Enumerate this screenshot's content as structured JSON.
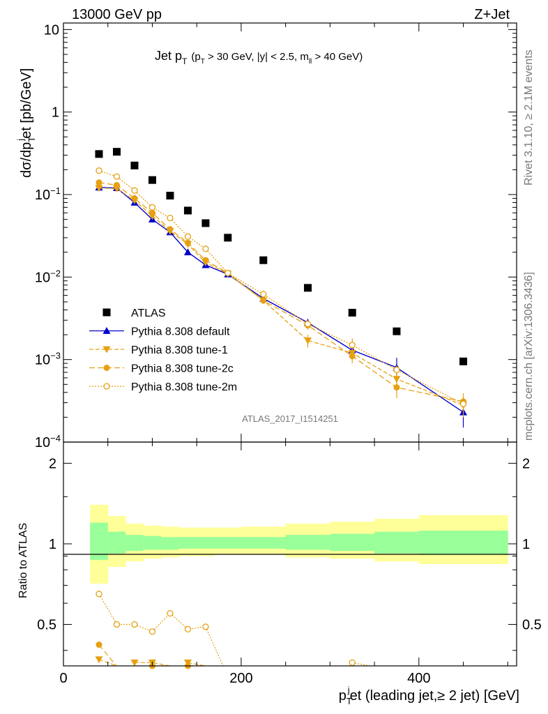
{
  "header": {
    "energy_label": "13000 GeV pp",
    "process_label": "Z+Jet"
  },
  "side_labels": {
    "rivet": "Rivet 3.1.10, ≥ 2.1M events",
    "mcplots": "mcplots.cern.ch [arXiv:1306.3436]"
  },
  "analysis_id": "ATLAS_2017_I1514251",
  "plot_title": {
    "main": "Jet p",
    "main_sub": "T",
    "cut_a": "(p",
    "cut_a_sub": "T",
    "cut_b": " > 30 GeV, |y| < 2.5, m",
    "cut_b_sub": "ll",
    "cut_c": " > 40 GeV)"
  },
  "y_label": {
    "a": "dσ/dp",
    "a_sub": "T",
    "a_sup": "j",
    "b": "et [pb/GeV]"
  },
  "x_label": {
    "a": "p",
    "a_sub": "T",
    "a_sup": "j",
    "b": "et (leading jet,≥ 2 jet) [GeV]"
  },
  "ratio_label": "Ratio to ATLAS",
  "legend": [
    "ATLAS",
    "Pythia 8.308 default",
    "Pythia 8.308 tune-1",
    "Pythia 8.308 tune-2c",
    "Pythia 8.308 tune-2m"
  ],
  "top_ticks": [
    {
      "label": "10",
      "sup": ""
    },
    {
      "label": "1",
      "sup": ""
    },
    {
      "label": "10",
      "sup": "−1"
    },
    {
      "label": "10",
      "sup": "−2"
    },
    {
      "label": "10",
      "sup": "−3"
    },
    {
      "label": "10",
      "sup": "−4"
    }
  ],
  "ratio_ticks": [
    "2",
    "1",
    "0.5"
  ],
  "x_ticks": [
    "0",
    "200",
    "400"
  ],
  "colors": {
    "atlas": "#000000",
    "default": "#0000cc",
    "tunes": "#e6a010",
    "band_inner": "#99ff99",
    "band_outer": "#ffff99"
  },
  "chart_data": {
    "type": "scatter",
    "x_axis": {
      "range": [
        0,
        510
      ],
      "scale": "linear"
    },
    "y_axis": {
      "range": [
        0.0001,
        12
      ],
      "scale": "log"
    },
    "ratio_axis": {
      "range": [
        0.35,
        2.4
      ],
      "scale": "log"
    },
    "bins": [
      [
        30,
        50
      ],
      [
        50,
        70
      ],
      [
        70,
        90
      ],
      [
        90,
        110
      ],
      [
        110,
        130
      ],
      [
        130,
        150
      ],
      [
        150,
        170
      ],
      [
        170,
        200
      ],
      [
        200,
        250
      ],
      [
        250,
        300
      ],
      [
        300,
        350
      ],
      [
        350,
        400
      ],
      [
        400,
        500
      ]
    ],
    "x": [
      40,
      60,
      80,
      100,
      120,
      140,
      160,
      185,
      225,
      275,
      325,
      375,
      450
    ],
    "series": [
      {
        "name": "ATLAS",
        "style": "data",
        "values": [
          0.31,
          0.33,
          0.225,
          0.15,
          0.097,
          0.064,
          0.045,
          0.03,
          0.016,
          0.0074,
          0.0037,
          0.0022,
          0.00095
        ]
      },
      {
        "name": "Pythia 8.308 default",
        "style": "default",
        "values": [
          0.122,
          0.12,
          0.08,
          0.05,
          0.035,
          0.02,
          0.014,
          0.0108,
          0.0055,
          0.0028,
          0.0013,
          0.0008,
          0.00023
        ],
        "errors": [
          0,
          0,
          0,
          0,
          0,
          0,
          0,
          0,
          0,
          0.0003,
          0.0002,
          0.00025,
          8e-05
        ]
      },
      {
        "name": "Pythia 8.308 tune-1",
        "style": "tune1",
        "values": [
          0.12,
          0.118,
          0.085,
          0.055,
          0.036,
          0.025,
          0.015,
          0.011,
          0.0052,
          0.0017,
          0.0012,
          0.00058,
          0.00028
        ],
        "errors": [
          0,
          0,
          0,
          0,
          0,
          0,
          0,
          0,
          0,
          0.0003,
          0.0002,
          0.0001,
          8e-05
        ]
      },
      {
        "name": "Pythia 8.308 tune-2c",
        "style": "tune2c",
        "values": [
          0.14,
          0.13,
          0.09,
          0.06,
          0.038,
          0.026,
          0.016,
          0.0112,
          0.0052,
          0.0026,
          0.0011,
          0.00046,
          0.00031
        ],
        "errors": [
          0,
          0,
          0,
          0,
          0,
          0,
          0,
          0,
          0,
          0.0003,
          0.0002,
          0.00012,
          8e-05
        ]
      },
      {
        "name": "Pythia 8.308 tune-2m",
        "style": "tune2m",
        "values": [
          0.195,
          0.165,
          0.112,
          0.07,
          0.052,
          0.031,
          0.022,
          0.0112,
          0.0062,
          0.0027,
          0.0015,
          0.00075,
          0.00029
        ],
        "errors": [
          0,
          0,
          0,
          0,
          0,
          0,
          0,
          0,
          0,
          0.0003,
          0.0003,
          0.0001,
          6e-05
        ]
      }
    ],
    "ratio_series": [
      {
        "name": "Pythia 8.308 tune-1",
        "style": "tune1",
        "values": [
          0.37,
          null,
          0.36,
          0.36,
          null,
          0.36,
          null,
          null,
          null,
          null,
          null,
          null,
          null
        ]
      },
      {
        "name": "Pythia 8.308 tune-2c",
        "style": "tune2c",
        "values": [
          0.42,
          null,
          null,
          0.35,
          null,
          0.35,
          null,
          null,
          null,
          null,
          null,
          null,
          null
        ]
      },
      {
        "name": "Pythia 8.308 tune-2m",
        "style": "tune2m",
        "values": [
          0.65,
          0.5,
          0.5,
          0.47,
          0.55,
          0.48,
          0.49,
          null,
          null,
          null,
          0.36,
          null,
          null
        ]
      }
    ],
    "band_outer": [
      [
        0.71,
        1.4
      ],
      [
        0.82,
        1.27
      ],
      [
        0.86,
        1.19
      ],
      [
        0.88,
        1.17
      ],
      [
        0.89,
        1.16
      ],
      [
        0.9,
        1.15
      ],
      [
        0.9,
        1.15
      ],
      [
        0.91,
        1.15
      ],
      [
        0.91,
        1.16
      ],
      [
        0.89,
        1.19
      ],
      [
        0.88,
        1.21
      ],
      [
        0.86,
        1.24
      ],
      [
        0.84,
        1.28
      ]
    ],
    "band_inner": [
      [
        0.87,
        1.2
      ],
      [
        0.92,
        1.11
      ],
      [
        0.94,
        1.08
      ],
      [
        0.95,
        1.07
      ],
      [
        0.95,
        1.06
      ],
      [
        0.96,
        1.06
      ],
      [
        0.96,
        1.06
      ],
      [
        0.96,
        1.06
      ],
      [
        0.96,
        1.06
      ],
      [
        0.95,
        1.08
      ],
      [
        0.94,
        1.09
      ],
      [
        0.92,
        1.11
      ],
      [
        0.91,
        1.12
      ]
    ]
  }
}
